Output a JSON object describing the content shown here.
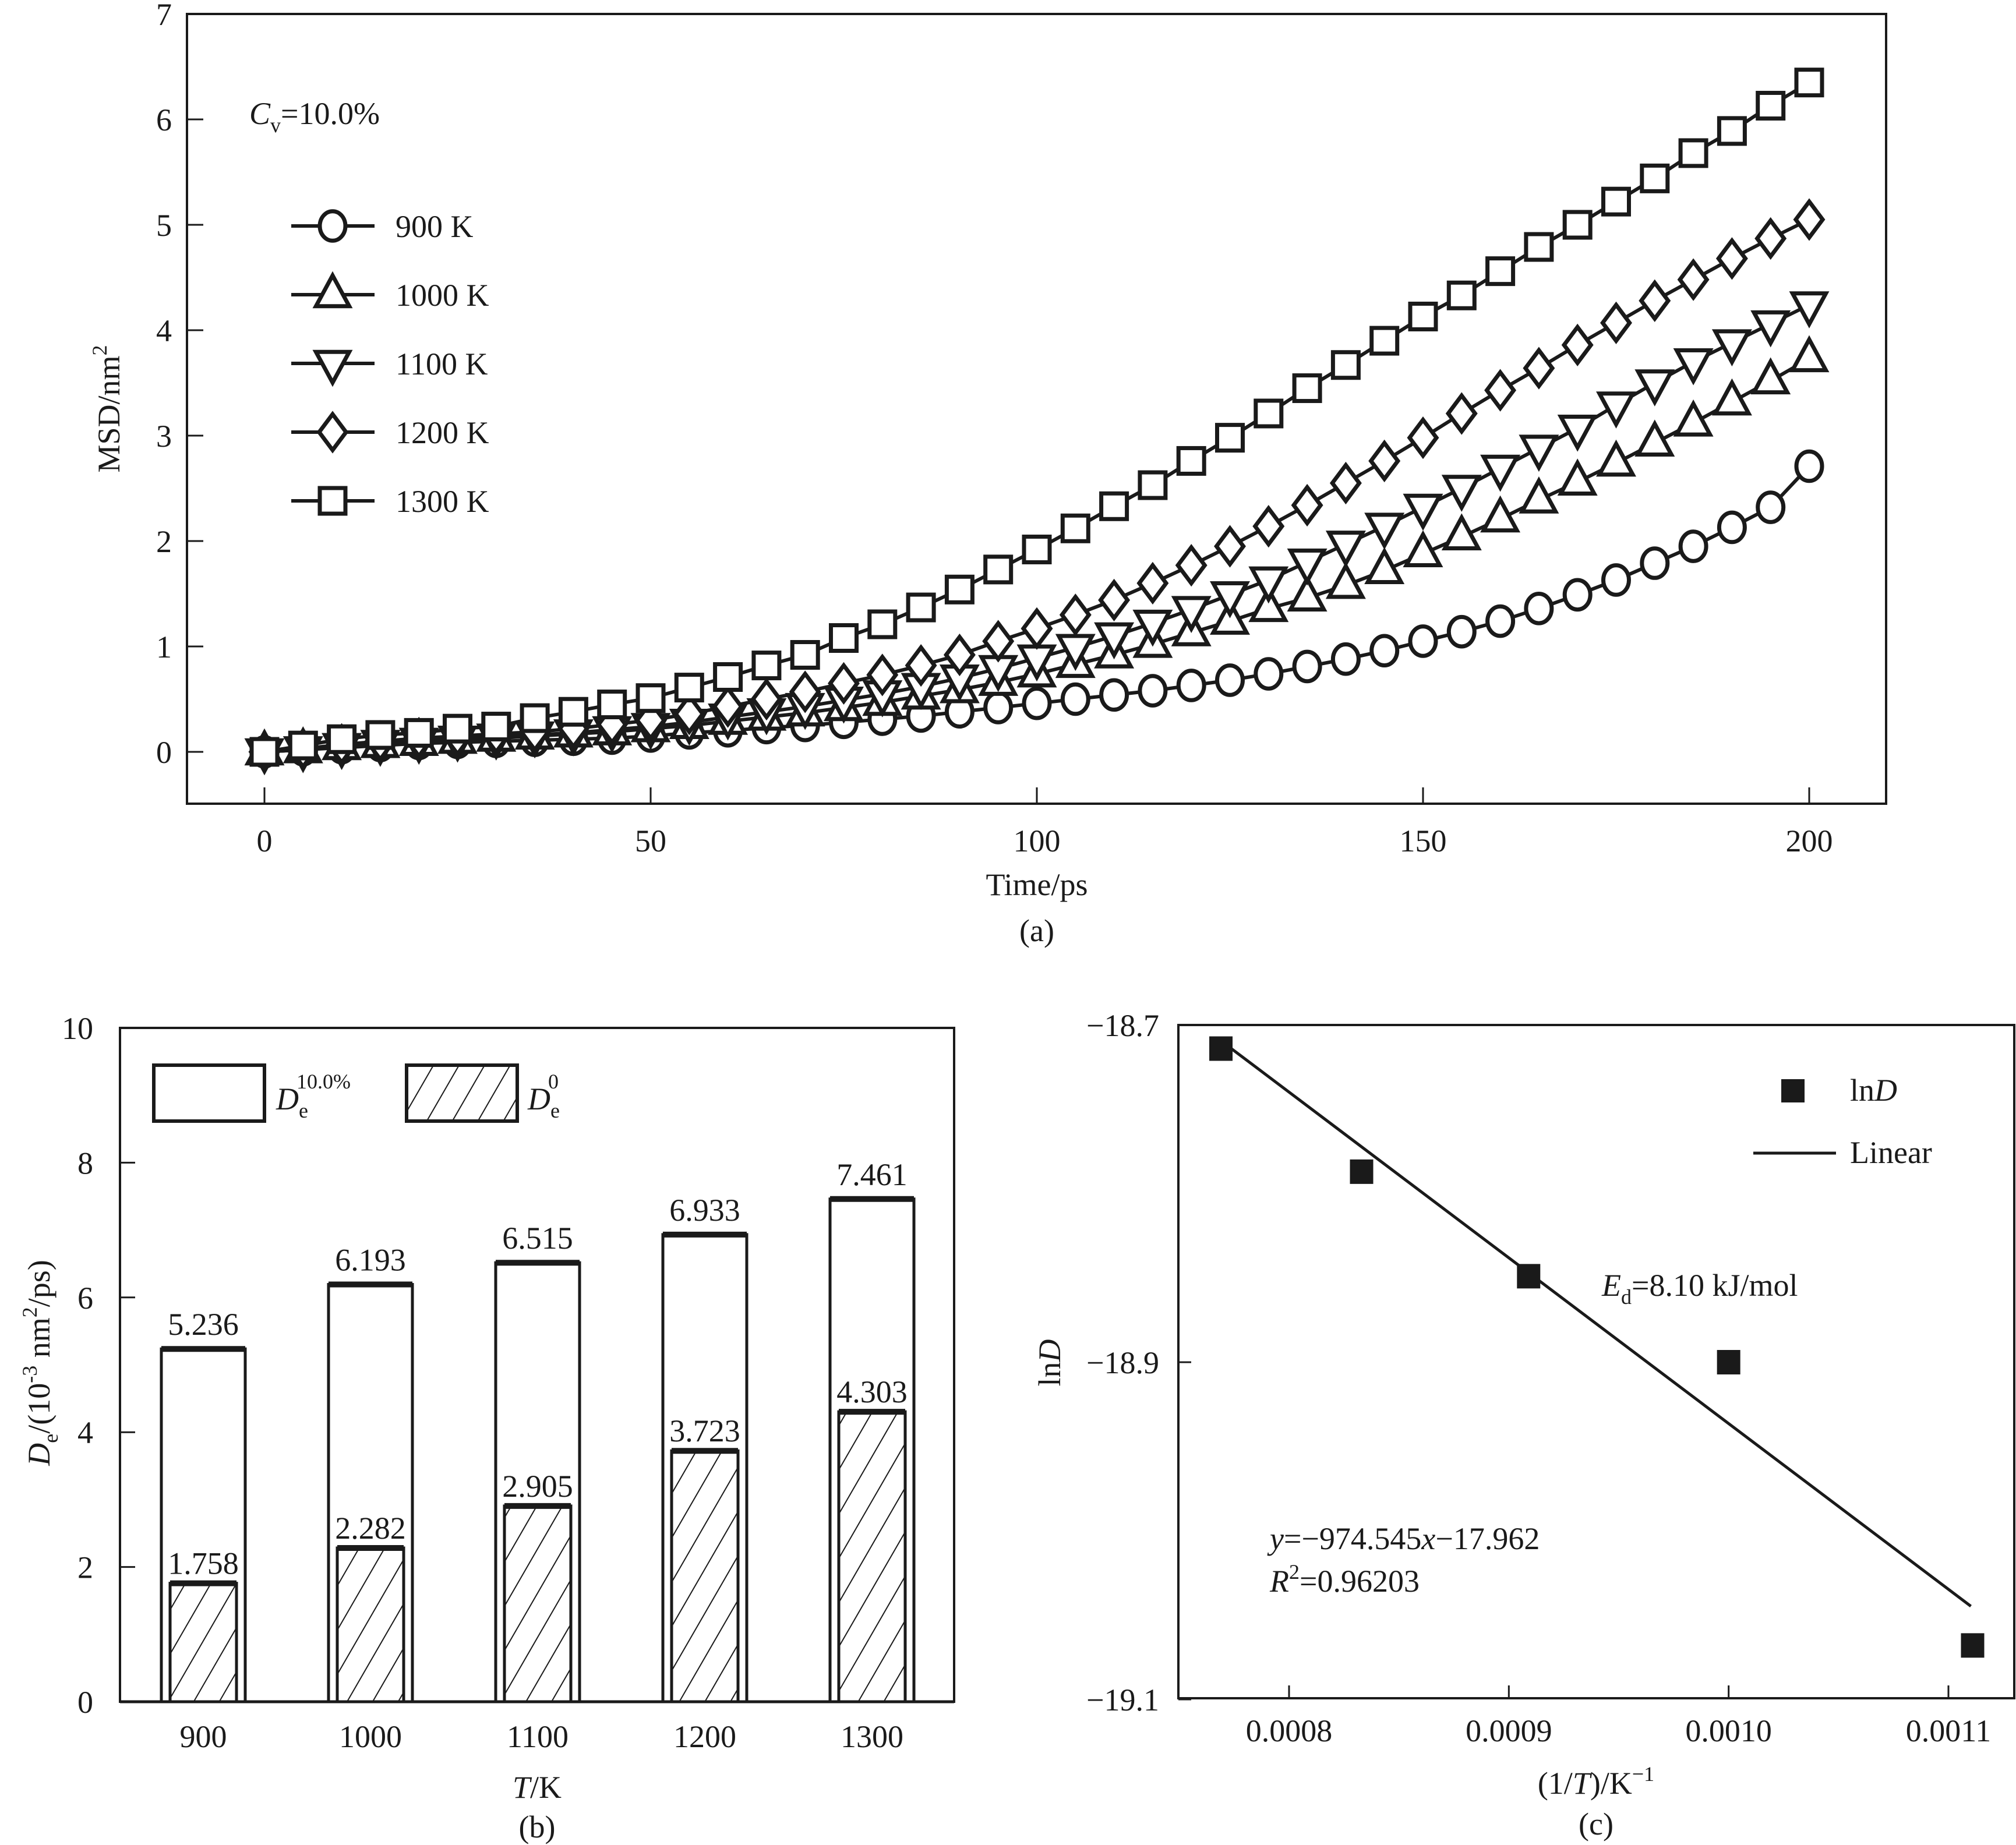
{
  "chart_data": [
    {
      "id": "a",
      "type": "line",
      "panel_label": "(a)",
      "title": "",
      "xlabel": "Time/ps",
      "ylabel": "MSD/nm²",
      "ylabel_main": "MSD/nm",
      "ylabel_sup": "2",
      "xlim": [
        -10,
        210
      ],
      "ylim": [
        -0.5,
        7
      ],
      "xticks": [
        0,
        50,
        100,
        150,
        200
      ],
      "yticks": [
        0,
        1,
        2,
        3,
        4,
        5,
        6,
        7
      ],
      "grid": false,
      "legend_position": "top-left",
      "annotation": {
        "main": "C",
        "sub": "v",
        "rest": "=10.0%"
      },
      "x": [
        0,
        5,
        10,
        15,
        20,
        25,
        30,
        35,
        40,
        45,
        50,
        55,
        60,
        65,
        70,
        75,
        80,
        85,
        90,
        95,
        100,
        105,
        110,
        115,
        120,
        125,
        130,
        135,
        140,
        145,
        150,
        155,
        160,
        165,
        170,
        175,
        180,
        185,
        190,
        195,
        200
      ],
      "series": [
        {
          "name": "900 K",
          "marker": "circle",
          "values": [
            0,
            0.02,
            0.04,
            0.06,
            0.08,
            0.09,
            0.1,
            0.11,
            0.12,
            0.13,
            0.15,
            0.18,
            0.2,
            0.23,
            0.25,
            0.28,
            0.31,
            0.34,
            0.38,
            0.42,
            0.46,
            0.5,
            0.54,
            0.58,
            0.63,
            0.68,
            0.74,
            0.81,
            0.88,
            0.96,
            1.05,
            1.14,
            1.24,
            1.36,
            1.49,
            1.63,
            1.79,
            1.95,
            2.13,
            2.32,
            2.71
          ]
        },
        {
          "name": "1000 K",
          "marker": "triangle-up",
          "values": [
            0,
            0.02,
            0.05,
            0.07,
            0.09,
            0.11,
            0.13,
            0.15,
            0.17,
            0.19,
            0.22,
            0.25,
            0.29,
            0.33,
            0.37,
            0.42,
            0.47,
            0.53,
            0.59,
            0.66,
            0.74,
            0.83,
            0.92,
            1.02,
            1.13,
            1.24,
            1.36,
            1.46,
            1.58,
            1.72,
            1.88,
            2.04,
            2.21,
            2.39,
            2.56,
            2.74,
            2.93,
            3.12,
            3.32,
            3.52,
            3.73
          ]
        },
        {
          "name": "1100 K",
          "marker": "triangle-down",
          "values": [
            0,
            0.02,
            0.05,
            0.08,
            0.1,
            0.12,
            0.14,
            0.16,
            0.18,
            0.21,
            0.24,
            0.28,
            0.33,
            0.38,
            0.43,
            0.49,
            0.55,
            0.62,
            0.7,
            0.79,
            0.89,
            0.99,
            1.1,
            1.22,
            1.35,
            1.49,
            1.63,
            1.8,
            1.97,
            2.14,
            2.32,
            2.5,
            2.69,
            2.88,
            3.07,
            3.29,
            3.5,
            3.7,
            3.88,
            4.06,
            4.24
          ]
        },
        {
          "name": "1200 K",
          "marker": "diamond",
          "values": [
            0,
            0.03,
            0.07,
            0.1,
            0.13,
            0.15,
            0.17,
            0.19,
            0.22,
            0.26,
            0.3,
            0.36,
            0.43,
            0.5,
            0.57,
            0.65,
            0.73,
            0.82,
            0.92,
            1.05,
            1.17,
            1.3,
            1.44,
            1.6,
            1.77,
            1.95,
            2.14,
            2.34,
            2.55,
            2.76,
            2.98,
            3.21,
            3.43,
            3.64,
            3.86,
            4.07,
            4.28,
            4.48,
            4.68,
            4.87,
            5.05
          ]
        },
        {
          "name": "1300 K",
          "marker": "square",
          "values": [
            0,
            0.06,
            0.12,
            0.16,
            0.18,
            0.22,
            0.24,
            0.32,
            0.38,
            0.45,
            0.51,
            0.61,
            0.71,
            0.82,
            0.92,
            1.08,
            1.21,
            1.37,
            1.54,
            1.73,
            1.92,
            2.12,
            2.33,
            2.53,
            2.76,
            2.98,
            3.21,
            3.45,
            3.67,
            3.9,
            4.13,
            4.33,
            4.56,
            4.79,
            5.0,
            5.22,
            5.44,
            5.68,
            5.89,
            6.13,
            6.35
          ]
        }
      ]
    },
    {
      "id": "b",
      "type": "bar",
      "panel_label": "(b)",
      "title": "",
      "xlabel_italic": "T",
      "xlabel_rest": "/K",
      "ylabel_italic": "D",
      "ylabel_sub": "e",
      "ylabel_rest": "/(10",
      "ylabel_sup": "-3",
      "ylabel_tail": " nm",
      "ylabel_sup2": "2",
      "ylabel_end": "/ps)",
      "ylim": [
        0,
        10
      ],
      "yticks": [
        0,
        2,
        4,
        6,
        8,
        10
      ],
      "grid": false,
      "legend_position": "top-left",
      "categories": [
        "900",
        "1000",
        "1100",
        "1200",
        "1300"
      ],
      "series": [
        {
          "name": "De^10.0%",
          "legend_main": "D",
          "legend_sub": "e",
          "legend_sup": "10.0%",
          "fill": "none",
          "values": [
            5.236,
            6.193,
            6.515,
            6.933,
            7.461
          ],
          "labels": [
            "5.236",
            "6.193",
            "6.515",
            "6.933",
            "7.461"
          ]
        },
        {
          "name": "De^0",
          "legend_main": "D",
          "legend_sub": "e",
          "legend_sup": "0",
          "fill": "hatched",
          "values": [
            1.758,
            2.282,
            2.905,
            3.723,
            4.303
          ],
          "labels": [
            "1.758",
            "2.282",
            "2.905",
            "3.723",
            "4.303"
          ]
        }
      ]
    },
    {
      "id": "c",
      "type": "scatter",
      "panel_label": "(c)",
      "title": "",
      "xlabel_pre": "(1/",
      "xlabel_italic": "T",
      "xlabel_post": ")/K",
      "xlabel_sup": "−1",
      "ylabel_pre": "ln",
      "ylabel_italic": "D",
      "xlim": [
        0.00075,
        0.00113
      ],
      "ylim": [
        -19.1,
        -18.7
      ],
      "xticks": [
        0.0008,
        0.0009,
        0.001,
        0.0011
      ],
      "xtick_labels": [
        "0.0008",
        "0.0009",
        "0.0010",
        "0.0011"
      ],
      "yticks": [
        -18.7,
        -18.9,
        -19.1
      ],
      "ytick_labels": [
        "−18.7",
        "−18.9",
        "−19.1"
      ],
      "grid": false,
      "legend_position": "top-right",
      "legend": [
        {
          "label_pre": "ln",
          "label_italic": "D",
          "kind": "marker"
        },
        {
          "label": "Linear",
          "kind": "line"
        }
      ],
      "points": {
        "name": "lnD",
        "x": [
          0.000769,
          0.000833,
          0.000909,
          0.001,
          0.001111
        ],
        "y": [
          -18.714,
          -18.787,
          -18.849,
          -18.9,
          -19.068
        ]
      },
      "fit": {
        "name": "Linear",
        "slope": -974.545,
        "intercept": -17.962,
        "x_range": [
          0.000769,
          0.001111
        ]
      },
      "annotations": {
        "energy": {
          "italic": "E",
          "sub": "d",
          "rest": "=8.10 kJ/mol"
        },
        "equation": {
          "y": "y",
          "eq1": "=−974.545",
          "x": "x",
          "eq2": "−17.962"
        },
        "r2": {
          "R": "R",
          "sup": "2",
          "rest": "=0.96203"
        }
      }
    }
  ]
}
